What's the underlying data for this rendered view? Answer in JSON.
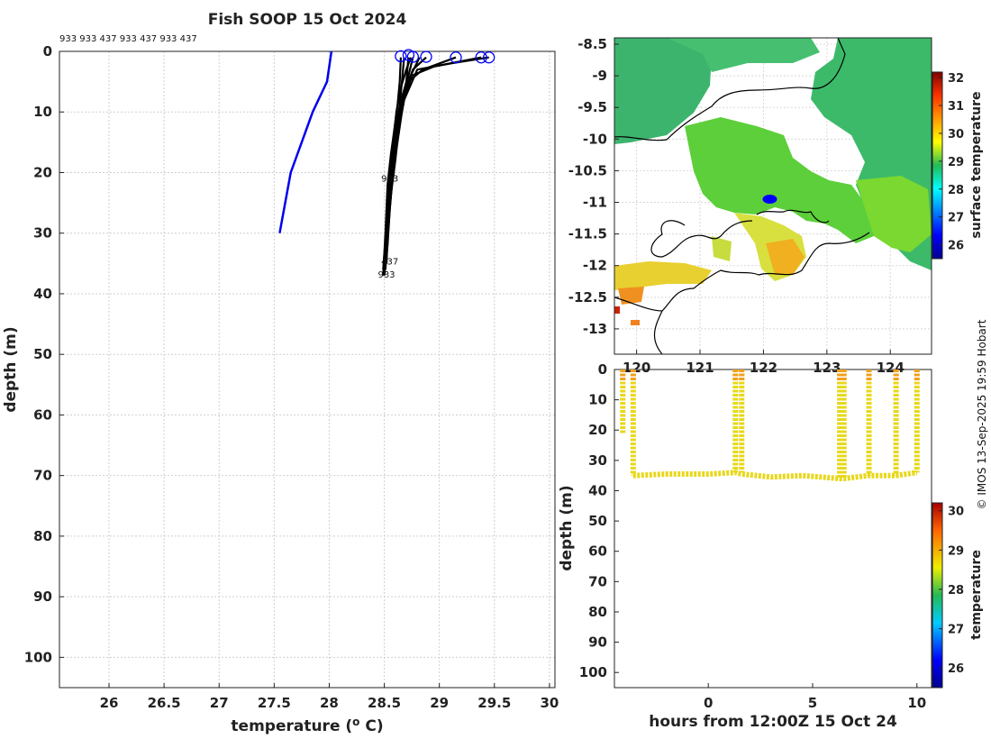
{
  "title": "Fish SOOP 15 Oct 2024",
  "credit": "© IMOS 13-Sep-2025 19:59 Hobart",
  "colors": {
    "recent": "#0000ee",
    "profiles": "#000000",
    "marker": "#0000ff"
  },
  "chart_data": [
    {
      "id": "profiles",
      "type": "line",
      "title": "Fish SOOP 15 Oct 2024",
      "xlabel": "temperature (° C)",
      "ylabel": "depth (m)",
      "xlim": [
        25.55,
        30.05
      ],
      "ylim": [
        105,
        0
      ],
      "xticks": [
        "26",
        "26.5",
        "27",
        "27.5",
        "28",
        "28.5",
        "29",
        "29.5",
        "30"
      ],
      "yticks": [
        "0",
        "10",
        "20",
        "30",
        "40",
        "50",
        "60",
        "70",
        "80",
        "90",
        "100"
      ],
      "top_labels": "933 933 437 933 437 933 437",
      "trace_labels": [
        {
          "text": "933",
          "x": 28.55,
          "y": 21.5
        },
        {
          "text": "437",
          "x": 28.55,
          "y": 35.2
        },
        {
          "text": "933",
          "x": 28.52,
          "y": 37.3
        }
      ],
      "series": [
        {
          "name": "recent",
          "x": [
            28.02,
            27.98,
            27.85,
            27.65,
            27.55
          ],
          "y": [
            0,
            5,
            10,
            20,
            30
          ]
        },
        {
          "name": "p1",
          "x": [
            29.45,
            29.1,
            28.8,
            28.68,
            28.63,
            28.6,
            28.55,
            28.52,
            28.5
          ],
          "y": [
            1,
            2,
            3,
            8,
            13,
            18,
            25,
            32,
            36
          ]
        },
        {
          "name": "p2",
          "x": [
            29.38,
            28.95,
            28.75,
            28.66,
            28.62,
            28.58,
            28.55,
            28.52,
            28.5
          ],
          "y": [
            1,
            2.5,
            4,
            9,
            14,
            19,
            26,
            33,
            36
          ]
        },
        {
          "name": "p3",
          "x": [
            29.15,
            28.85,
            28.72,
            28.64,
            28.6,
            28.57,
            28.54,
            28.52
          ],
          "y": [
            1,
            3,
            5,
            10,
            15,
            20,
            27,
            35
          ]
        },
        {
          "name": "p4",
          "x": [
            28.88,
            28.76,
            28.7,
            28.66,
            28.62,
            28.58,
            28.55,
            28.53,
            28.5
          ],
          "y": [
            1,
            3,
            6,
            10,
            15,
            20,
            26,
            32,
            37
          ]
        },
        {
          "name": "p5",
          "x": [
            28.82,
            28.74,
            28.68,
            28.63,
            28.6,
            28.56,
            28.54,
            28.51
          ],
          "y": [
            1,
            4,
            7,
            11,
            15,
            20,
            28,
            36
          ]
        },
        {
          "name": "p6",
          "x": [
            28.76,
            28.72,
            28.67,
            28.62,
            28.59,
            28.55,
            28.53,
            28.5
          ],
          "y": [
            1,
            4,
            7,
            11,
            16,
            21,
            28,
            36
          ]
        },
        {
          "name": "p7",
          "x": [
            28.72,
            28.7,
            28.66,
            28.62,
            28.58,
            28.55,
            28.52,
            28.5
          ],
          "y": [
            1,
            5,
            8,
            12,
            16,
            22,
            28,
            35
          ]
        },
        {
          "name": "p8",
          "x": [
            28.68,
            28.66,
            28.64,
            28.6,
            28.57,
            28.54,
            28.52,
            28.49
          ],
          "y": [
            1,
            5,
            9,
            13,
            17,
            22,
            29,
            36
          ]
        },
        {
          "name": "p9",
          "x": [
            28.65,
            28.64,
            28.62,
            28.59,
            28.56,
            28.53,
            28.51,
            28.49
          ],
          "y": [
            1,
            5,
            9,
            13,
            17,
            22,
            30,
            37
          ]
        },
        {
          "name": "p10",
          "x": [
            28.74,
            28.7,
            28.65,
            28.61,
            28.58,
            28.56,
            28.53,
            28.51
          ],
          "y": [
            1,
            3,
            6,
            10,
            15,
            21,
            28,
            35
          ]
        }
      ],
      "markers": [
        {
          "x": 28.65,
          "y": 0.8
        },
        {
          "x": 28.72,
          "y": 0.6
        },
        {
          "x": 28.76,
          "y": 0.9
        },
        {
          "x": 28.88,
          "y": 0.9
        },
        {
          "x": 29.15,
          "y": 1.0
        },
        {
          "x": 29.38,
          "y": 1.0
        },
        {
          "x": 29.45,
          "y": 1.0
        }
      ]
    },
    {
      "id": "map",
      "type": "heatmap",
      "colorbar_label": "surface temperature",
      "clim": [
        25.5,
        32.2
      ],
      "colorbar_ticks": [
        "26",
        "27",
        "28",
        "29",
        "30",
        "31",
        "32"
      ],
      "xlim": [
        119.65,
        124.65
      ],
      "ylim": [
        -13.4,
        -8.4
      ],
      "xticks": [
        "120",
        "121",
        "122",
        "123",
        "124"
      ],
      "yticks": [
        "-8.5",
        "-9",
        "-9.5",
        "-10",
        "-10.5",
        "-11",
        "-11.5",
        "-12",
        "-12.5",
        "-13"
      ],
      "vessel_position": {
        "lon": 122.1,
        "lat": -10.95
      }
    },
    {
      "id": "section",
      "type": "scatter",
      "xlabel": "hours from 12:00Z 15 Oct 24",
      "ylabel": "depth (m)",
      "colorbar_label": "temperature",
      "clim": [
        25.5,
        30.2
      ],
      "colorbar_ticks": [
        "26",
        "27",
        "28",
        "29",
        "30"
      ],
      "xlim": [
        -4.5,
        10.7
      ],
      "ylim": [
        105,
        0
      ],
      "xticks": [
        "0",
        "5",
        "10"
      ],
      "yticks": [
        "0",
        "10",
        "20",
        "30",
        "40",
        "50",
        "60",
        "70",
        "80",
        "90",
        "100"
      ],
      "casts": [
        {
          "t": -4.1,
          "max_depth": 21
        },
        {
          "t": -3.6,
          "max_depth": 35
        },
        {
          "t": 1.3,
          "max_depth": 34
        },
        {
          "t": 1.6,
          "max_depth": 34
        },
        {
          "t": 6.3,
          "max_depth": 36
        },
        {
          "t": 6.5,
          "max_depth": 36
        },
        {
          "t": 7.7,
          "max_depth": 35
        },
        {
          "t": 9.0,
          "max_depth": 35
        },
        {
          "t": 10.0,
          "max_depth": 34
        }
      ],
      "bottom_track": {
        "t": [
          -3.6,
          -2,
          0,
          1.3,
          1.6,
          3,
          4.5,
          6.3,
          6.5,
          7.7,
          9,
          10
        ],
        "depth": [
          35,
          34.5,
          34.5,
          34,
          34.5,
          35.5,
          35,
          36,
          36,
          35,
          35,
          34
        ]
      }
    }
  ]
}
